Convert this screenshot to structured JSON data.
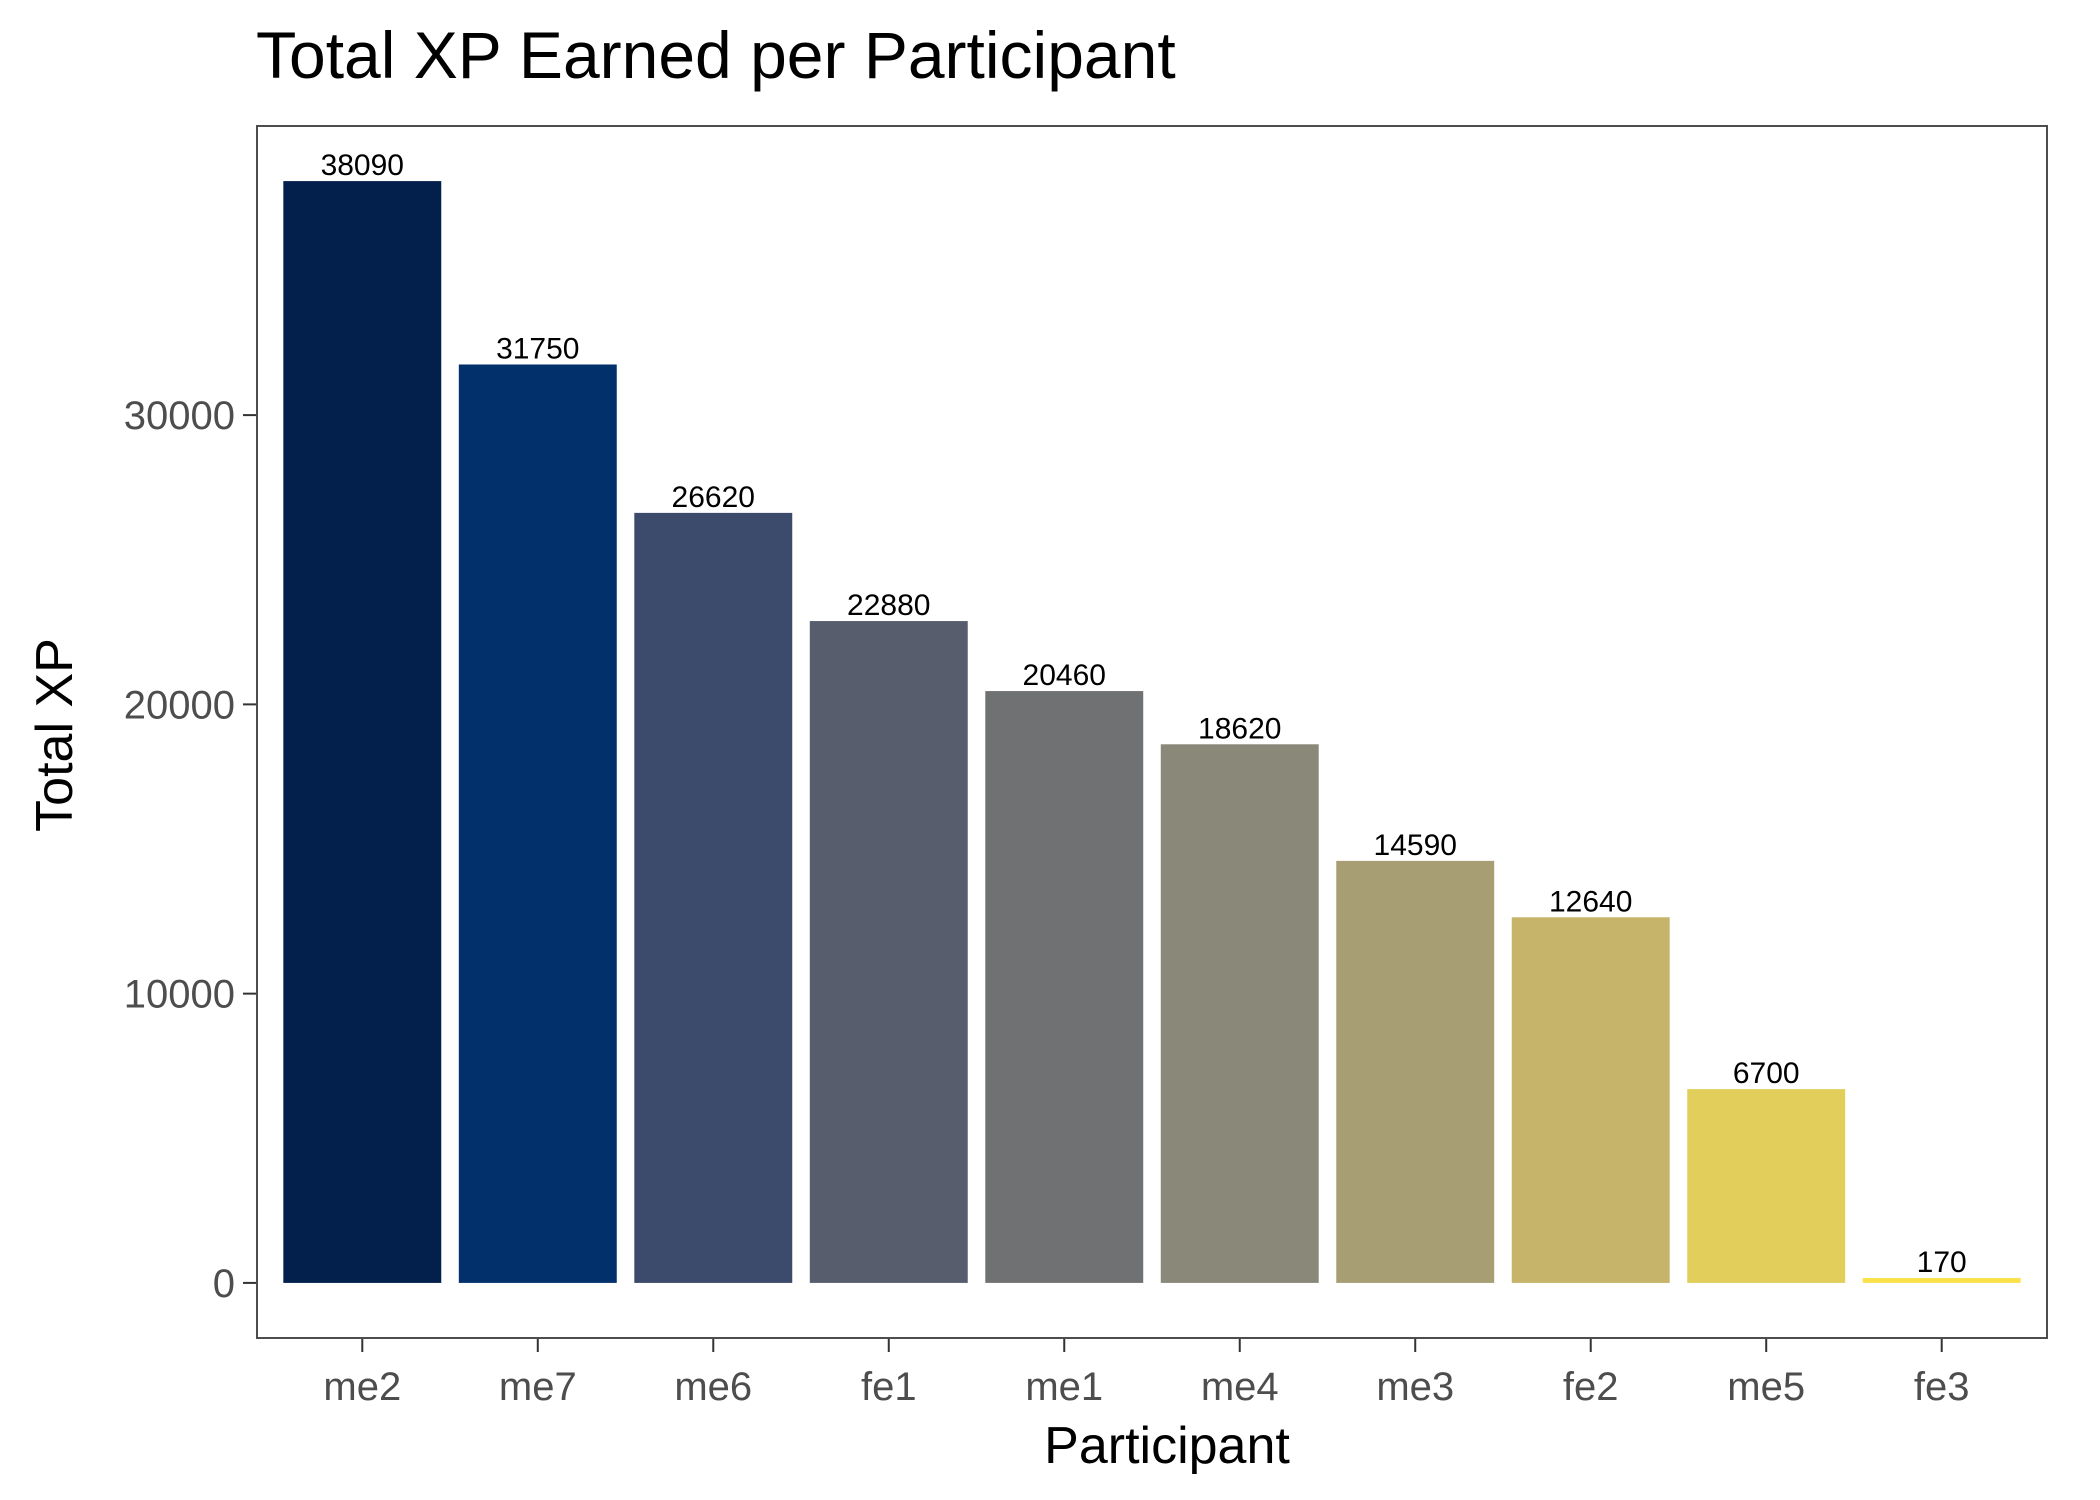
{
  "chart_data": {
    "type": "bar",
    "title": "Total XP Earned per Participant",
    "xlabel": "Participant",
    "ylabel": "Total XP",
    "categories": [
      "me2",
      "me7",
      "me6",
      "fe1",
      "me1",
      "me4",
      "me3",
      "fe2",
      "me5",
      "fe3"
    ],
    "values": [
      38090,
      31750,
      26620,
      22880,
      20460,
      18620,
      14590,
      12640,
      6700,
      170
    ],
    "colors": [
      "#03204c",
      "#02306b",
      "#3c4a6b",
      "#575d6d",
      "#707173",
      "#8a8878",
      "#a79e74",
      "#c6b46a",
      "#e2ce5a",
      "#fbe24b"
    ],
    "data_labels": [
      "38090",
      "31750",
      "26620",
      "22880",
      "20460",
      "18620",
      "14590",
      "12640",
      "6700",
      "170"
    ],
    "yticks": [
      0,
      10000,
      20000,
      30000
    ],
    "ytick_labels": [
      "0",
      "10000",
      "20000",
      "30000"
    ],
    "ylim": [
      -1904.5,
      39994.5
    ],
    "grid": false,
    "legend": "none"
  }
}
